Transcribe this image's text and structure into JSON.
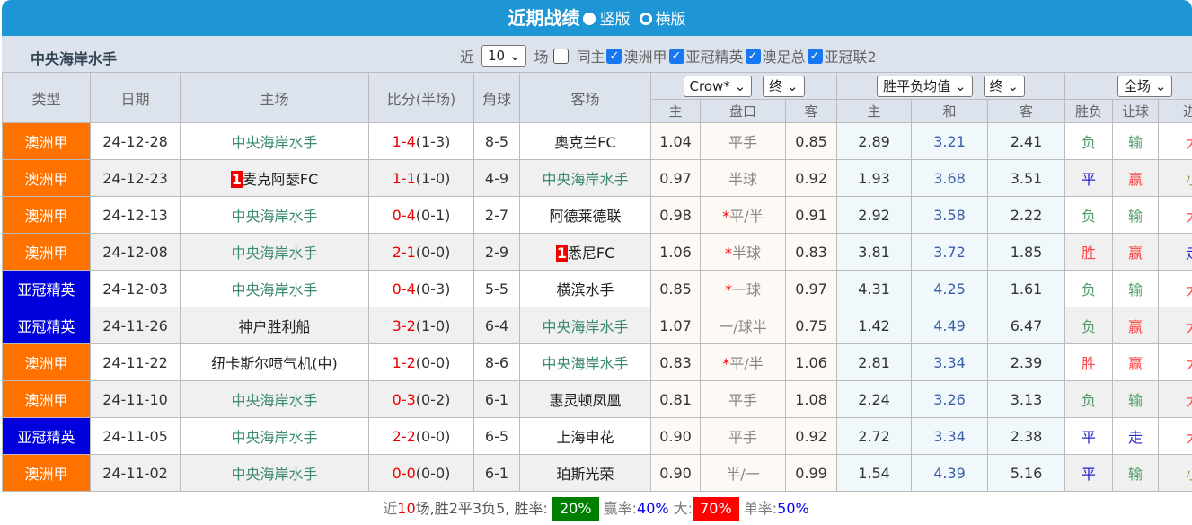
{
  "title": {
    "text": "近期战绩",
    "opt1": "竖版",
    "opt2": "横版"
  },
  "team": "中央海岸水手",
  "filters": {
    "near": "近",
    "count": "10",
    "unit": "场",
    "same_home": "同主",
    "leagues": [
      "澳洲甲",
      "亚冠精英",
      "澳足总",
      "亚冠联2"
    ]
  },
  "headers": {
    "type": "类型",
    "date": "日期",
    "home": "主场",
    "score": "比分(半场)",
    "corner": "角球",
    "away": "客场",
    "company": "Crow*",
    "final1": "终",
    "avg": "胜平负均值",
    "final2": "终",
    "scope": "全场",
    "sub": [
      "主",
      "盘口",
      "客",
      "主",
      "和",
      "客",
      "胜负",
      "让球",
      "进球"
    ]
  },
  "rows": [
    {
      "type": "澳洲甲",
      "acl": false,
      "date": "24-12-28",
      "home": "中央海岸水手",
      "home_rank": "",
      "home_self": true,
      "ft": "1-4",
      "ht": "(1-3)",
      "corner": "8-5",
      "away": "奥克兰FC",
      "away_rank": "",
      "away_self": false,
      "h": "1.04",
      "hcp": "平手",
      "star": false,
      "a": "0.85",
      "w": "2.89",
      "d": "3.21",
      "l": "2.41",
      "r1": "负",
      "r2": "输",
      "r3": "大"
    },
    {
      "type": "澳洲甲",
      "acl": false,
      "date": "24-12-23",
      "home": "麦克阿瑟FC",
      "home_rank": "1",
      "home_self": false,
      "ft": "1-1",
      "ht": "(1-0)",
      "corner": "4-9",
      "away": "中央海岸水手",
      "away_rank": "",
      "away_self": true,
      "h": "0.97",
      "hcp": "半球",
      "star": false,
      "a": "0.92",
      "w": "1.93",
      "d": "3.68",
      "l": "3.51",
      "r1": "平",
      "r2": "赢",
      "r3": "小"
    },
    {
      "type": "澳洲甲",
      "acl": false,
      "date": "24-12-13",
      "home": "中央海岸水手",
      "home_rank": "",
      "home_self": true,
      "ft": "0-4",
      "ht": "(0-1)",
      "corner": "2-7",
      "away": "阿德莱德联",
      "away_rank": "",
      "away_self": false,
      "h": "0.98",
      "hcp": "平/半",
      "star": true,
      "a": "0.91",
      "w": "2.92",
      "d": "3.58",
      "l": "2.22",
      "r1": "负",
      "r2": "输",
      "r3": "大"
    },
    {
      "type": "澳洲甲",
      "acl": false,
      "date": "24-12-08",
      "home": "中央海岸水手",
      "home_rank": "",
      "home_self": true,
      "ft": "2-1",
      "ht": "(0-0)",
      "corner": "2-9",
      "away": "悉尼FC",
      "away_rank": "1",
      "away_self": false,
      "h": "1.06",
      "hcp": "半球",
      "star": true,
      "a": "0.83",
      "w": "3.81",
      "d": "3.72",
      "l": "1.85",
      "r1": "胜",
      "r2": "赢",
      "r3": "走"
    },
    {
      "type": "亚冠精英",
      "acl": true,
      "date": "24-12-03",
      "home": "中央海岸水手",
      "home_rank": "",
      "home_self": true,
      "ft": "0-4",
      "ht": "(0-3)",
      "corner": "5-5",
      "away": "横滨水手",
      "away_rank": "",
      "away_self": false,
      "h": "0.85",
      "hcp": "一球",
      "star": true,
      "a": "0.97",
      "w": "4.31",
      "d": "4.25",
      "l": "1.61",
      "r1": "负",
      "r2": "输",
      "r3": "大"
    },
    {
      "type": "亚冠精英",
      "acl": true,
      "date": "24-11-26",
      "home": "神户胜利船",
      "home_rank": "",
      "home_self": false,
      "ft": "3-2",
      "ht": "(1-0)",
      "corner": "6-4",
      "away": "中央海岸水手",
      "away_rank": "",
      "away_self": true,
      "h": "1.07",
      "hcp": "一/球半",
      "star": false,
      "a": "0.75",
      "w": "1.42",
      "d": "4.49",
      "l": "6.47",
      "r1": "负",
      "r2": "赢",
      "r3": "大"
    },
    {
      "type": "澳洲甲",
      "acl": false,
      "date": "24-11-22",
      "home": "纽卡斯尔喷气机(中)",
      "home_rank": "",
      "home_self": false,
      "ft": "1-2",
      "ht": "(0-0)",
      "corner": "8-6",
      "away": "中央海岸水手",
      "away_rank": "",
      "away_self": true,
      "h": "0.83",
      "hcp": "平/半",
      "star": true,
      "a": "1.06",
      "w": "2.81",
      "d": "3.34",
      "l": "2.39",
      "r1": "胜",
      "r2": "赢",
      "r3": "大"
    },
    {
      "type": "澳洲甲",
      "acl": false,
      "date": "24-11-10",
      "home": "中央海岸水手",
      "home_rank": "",
      "home_self": true,
      "ft": "0-3",
      "ht": "(0-2)",
      "corner": "6-1",
      "away": "惠灵顿凤凰",
      "away_rank": "",
      "away_self": false,
      "h": "0.81",
      "hcp": "平手",
      "star": false,
      "a": "1.08",
      "w": "2.24",
      "d": "3.26",
      "l": "3.13",
      "r1": "负",
      "r2": "输",
      "r3": "大"
    },
    {
      "type": "亚冠精英",
      "acl": true,
      "date": "24-11-05",
      "home": "中央海岸水手",
      "home_rank": "",
      "home_self": true,
      "ft": "2-2",
      "ht": "(0-0)",
      "corner": "6-5",
      "away": "上海申花",
      "away_rank": "",
      "away_self": false,
      "h": "0.90",
      "hcp": "平手",
      "star": false,
      "a": "0.92",
      "w": "2.72",
      "d": "3.34",
      "l": "2.38",
      "r1": "平",
      "r2": "走",
      "r3": "大"
    },
    {
      "type": "澳洲甲",
      "acl": false,
      "date": "24-11-02",
      "home": "中央海岸水手",
      "home_rank": "",
      "home_self": true,
      "ft": "0-0",
      "ht": "(0-0)",
      "corner": "6-1",
      "away": "珀斯光荣",
      "away_rank": "",
      "away_self": false,
      "h": "0.90",
      "hcp": "半/一",
      "star": false,
      "a": "0.99",
      "w": "1.54",
      "d": "4.39",
      "l": "5.16",
      "r1": "平",
      "r2": "输",
      "r3": "小"
    }
  ],
  "footer": {
    "p1": "近",
    "n": "10",
    "p2": "场,胜2平3负5, 胜率:",
    "win_rate": "20%",
    "p3": "赢率:",
    "cover_rate": "40%",
    "p4": "大:",
    "over_rate": "70%",
    "p5": "单率:",
    "odd_rate": "50%"
  },
  "colors": {
    "title_bar": "#1e96d6",
    "a_league": "#ff7200",
    "acl": "#0000dd",
    "win_badge": "#008000",
    "over_badge": "#ff0000"
  }
}
